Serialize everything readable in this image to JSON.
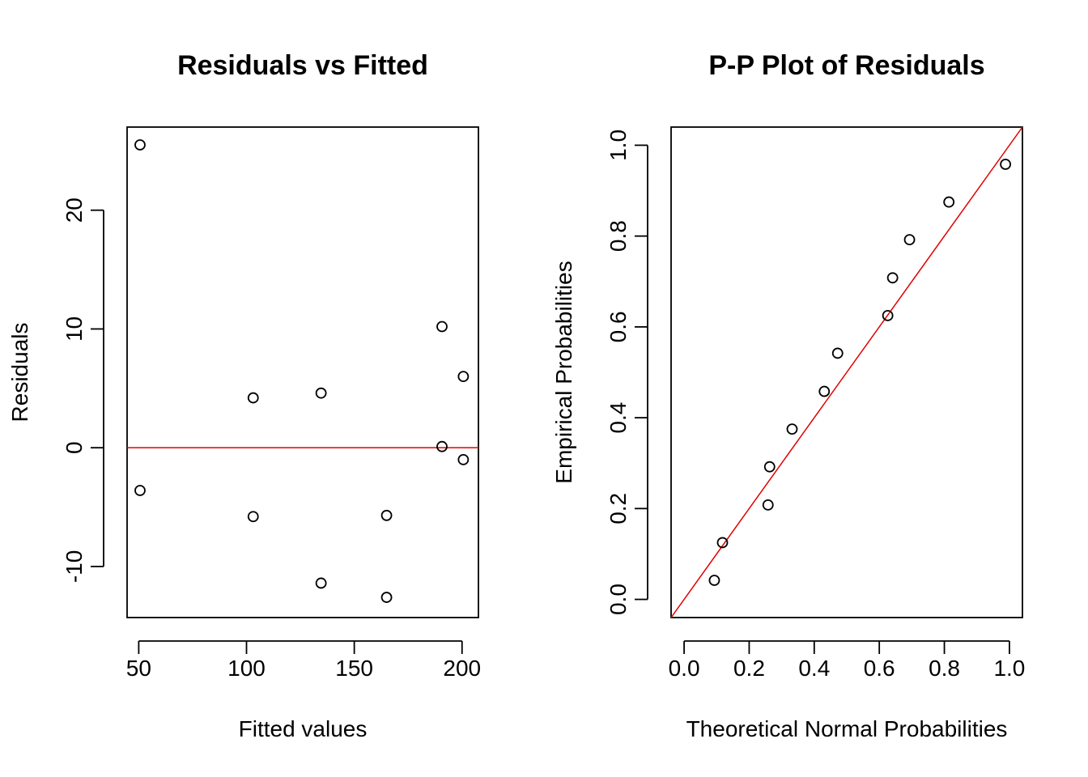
{
  "chart_data": [
    {
      "type": "scatter",
      "title": "Residuals vs Fitted",
      "xlabel": "Fitted values",
      "ylabel": "Residuals",
      "xlim": [
        44.6,
        207.6
      ],
      "ylim": [
        -14.3,
        27.0
      ],
      "xticks": [
        50,
        100,
        150,
        200
      ],
      "yticks": [
        -10,
        0,
        10,
        20
      ],
      "grid": false,
      "series": [
        {
          "x": [
            50.6,
            50.6,
            103.1,
            103.1,
            134.6,
            134.6,
            165.0,
            165.0,
            190.7,
            190.7,
            200.6,
            200.6
          ],
          "y": [
            25.5,
            -3.6,
            4.2,
            -5.8,
            4.6,
            -11.4,
            -5.7,
            -12.6,
            10.2,
            0.1,
            6.0,
            -1.0
          ]
        }
      ],
      "reference_line": {
        "kind": "horizontal",
        "y": 0,
        "color": "#e00000"
      }
    },
    {
      "type": "scatter",
      "title": "P-P Plot of Residuals",
      "xlabel": "Theoretical Normal Probabilities",
      "ylabel": "Empirical Probabilities",
      "xlim": [
        -0.04,
        1.04
      ],
      "ylim": [
        -0.04,
        1.04
      ],
      "xticks": [
        "0.0",
        "0.2",
        "0.4",
        "0.6",
        "0.8",
        "1.0"
      ],
      "yticks": [
        "0.0",
        "0.2",
        "0.4",
        "0.6",
        "0.8",
        "1.0"
      ],
      "grid": false,
      "series": [
        {
          "x": [
            0.093,
            0.118,
            0.258,
            0.263,
            0.332,
            0.431,
            0.472,
            0.626,
            0.641,
            0.693,
            0.814,
            0.988
          ],
          "y": [
            0.042,
            0.125,
            0.208,
            0.292,
            0.375,
            0.458,
            0.542,
            0.625,
            0.708,
            0.792,
            0.875,
            0.958
          ]
        }
      ],
      "reference_line": {
        "kind": "identity",
        "color": "#e00000"
      }
    }
  ]
}
